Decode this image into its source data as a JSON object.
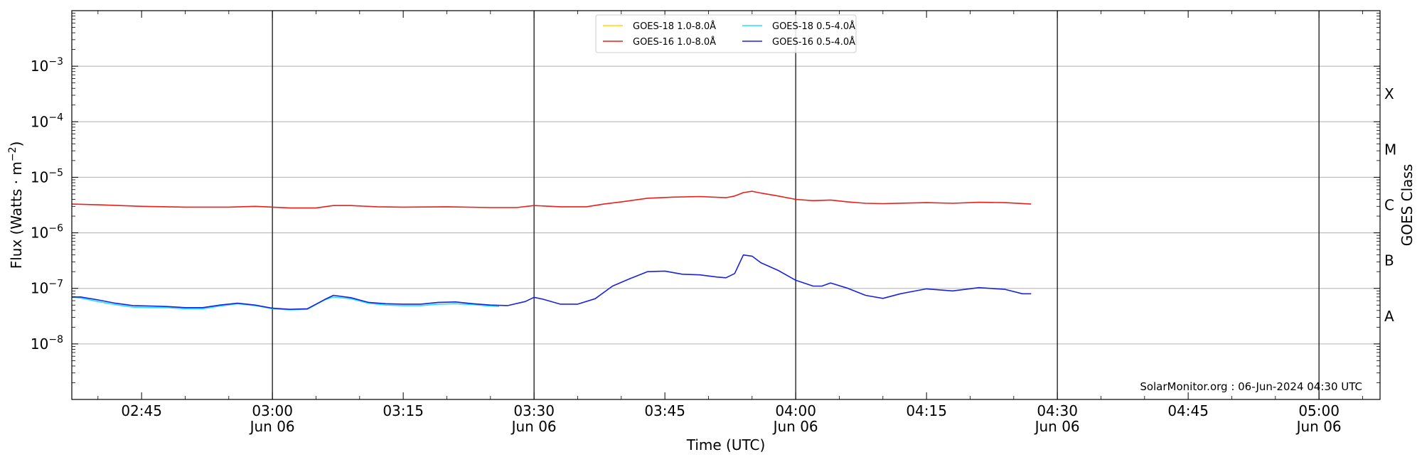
{
  "chart_data": {
    "type": "line",
    "title": "",
    "xlabel": "Time (UTC)",
    "ylabel": "Flux (Watts · m⁻²)",
    "ylabel_parts": {
      "main": "Flux (Watts · m",
      "exp": "−2",
      "close": ")"
    },
    "right_ylabel": "GOES Class",
    "y_scale": "log",
    "ylim": [
      1e-09,
      0.01
    ],
    "xlim": [
      "2024-06-06 02:37",
      "2024-06-06 05:07"
    ],
    "grid": "horizontal at decades",
    "legend_position": "top-center",
    "y_ticks": [
      {
        "value": 1e-08,
        "base": "10",
        "exp": "−8"
      },
      {
        "value": 1e-07,
        "base": "10",
        "exp": "−7"
      },
      {
        "value": 1e-06,
        "base": "10",
        "exp": "−6"
      },
      {
        "value": 1e-05,
        "base": "10",
        "exp": "−5"
      },
      {
        "value": 0.0001,
        "base": "10",
        "exp": "−4"
      },
      {
        "value": 0.001,
        "base": "10",
        "exp": "−3"
      }
    ],
    "class_labels": [
      {
        "label": "A",
        "value": 3.16e-08
      },
      {
        "label": "B",
        "value": 3.16e-07
      },
      {
        "label": "C",
        "value": 3.16e-06
      },
      {
        "label": "M",
        "value": 3.16e-05
      },
      {
        "label": "X",
        "value": 0.000316
      }
    ],
    "x_ticks": [
      {
        "time": "02:45",
        "line1": "02:45",
        "line2": ""
      },
      {
        "time": "03:00",
        "line1": "03:00",
        "line2": "Jun 06"
      },
      {
        "time": "03:15",
        "line1": "03:15",
        "line2": ""
      },
      {
        "time": "03:30",
        "line1": "03:30",
        "line2": "Jun 06"
      },
      {
        "time": "03:45",
        "line1": "03:45",
        "line2": ""
      },
      {
        "time": "04:00",
        "line1": "04:00",
        "line2": "Jun 06"
      },
      {
        "time": "04:15",
        "line1": "04:15",
        "line2": ""
      },
      {
        "time": "04:30",
        "line1": "04:30",
        "line2": "Jun 06"
      },
      {
        "time": "04:45",
        "line1": "04:45",
        "line2": ""
      },
      {
        "time": "05:00",
        "line1": "05:00",
        "line2": "Jun 06"
      }
    ],
    "vertical_lines": [
      "03:00",
      "03:30",
      "04:00",
      "04:30",
      "05:00"
    ],
    "series": [
      {
        "name": "GOES-18 1.0-8.0Å",
        "color": "#ffd700",
        "x": [],
        "y": []
      },
      {
        "name": "GOES-16 1.0-8.0Å",
        "color": "#e8201a",
        "x": [
          "02:37",
          "02:40",
          "02:45",
          "02:50",
          "02:55",
          "02:58",
          "03:00",
          "03:02",
          "03:05",
          "03:07",
          "03:09",
          "03:12",
          "03:15",
          "03:20",
          "03:25",
          "03:28",
          "03:30",
          "03:33",
          "03:36",
          "03:38",
          "03:40",
          "03:43",
          "03:46",
          "03:49",
          "03:52",
          "03:53",
          "03:54",
          "03:55",
          "03:56",
          "03:58",
          "04:00",
          "04:02",
          "04:04",
          "04:06",
          "04:08",
          "04:10",
          "04:15",
          "04:18",
          "04:21",
          "04:24",
          "04:27"
        ],
        "y": [
          3.3e-06,
          3.2e-06,
          3e-06,
          2.9e-06,
          2.9e-06,
          3e-06,
          2.9e-06,
          2.8e-06,
          2.8e-06,
          3.1e-06,
          3.1e-06,
          2.95e-06,
          2.9e-06,
          2.95e-06,
          2.85e-06,
          2.85e-06,
          3.1e-06,
          2.95e-06,
          2.95e-06,
          3.3e-06,
          3.6e-06,
          4.2e-06,
          4.4e-06,
          4.5e-06,
          4.3e-06,
          4.6e-06,
          5.3e-06,
          5.6e-06,
          5.2e-06,
          4.6e-06,
          4e-06,
          3.8e-06,
          3.9e-06,
          3.6e-06,
          3.4e-06,
          3.35e-06,
          3.5e-06,
          3.4e-06,
          3.55e-06,
          3.5e-06,
          3.3e-06
        ]
      },
      {
        "name": "GOES-18 0.5-4.0Å",
        "color": "#22e0ff",
        "x": [
          "02:37",
          "02:38",
          "02:40",
          "02:42",
          "02:44",
          "02:46",
          "02:48",
          "02:50",
          "02:52",
          "02:54",
          "02:56",
          "02:58",
          "03:00",
          "03:02",
          "03:04",
          "03:06",
          "03:07",
          "03:09",
          "03:11",
          "03:13",
          "03:15",
          "03:17",
          "03:19",
          "03:21",
          "03:23",
          "03:25",
          "03:26"
        ],
        "y": [
          7e-08,
          6.7e-08,
          5.8e-08,
          5.1e-08,
          4.6e-08,
          4.5e-08,
          4.5e-08,
          4.3e-08,
          4.3e-08,
          4.8e-08,
          5.3e-08,
          4.9e-08,
          4.3e-08,
          4.1e-08,
          4.2e-08,
          6.2e-08,
          7e-08,
          6.5e-08,
          5.4e-08,
          5e-08,
          4.9e-08,
          4.9e-08,
          5.2e-08,
          5.3e-08,
          5.1e-08,
          4.8e-08,
          4.7e-08
        ]
      },
      {
        "name": "GOES-16 0.5-4.0Å",
        "color": "#1a22e0",
        "x": [
          "02:37",
          "02:38",
          "02:40",
          "02:42",
          "02:44",
          "02:46",
          "02:48",
          "02:50",
          "02:52",
          "02:54",
          "02:56",
          "02:58",
          "03:00",
          "03:02",
          "03:04",
          "03:06",
          "03:07",
          "03:09",
          "03:11",
          "03:13",
          "03:15",
          "03:17",
          "03:19",
          "03:21",
          "03:23",
          "03:25",
          "03:27",
          "03:29",
          "03:30",
          "03:31",
          "03:33",
          "03:35",
          "03:37",
          "03:39",
          "03:41",
          "03:43",
          "03:45",
          "03:47",
          "03:49",
          "03:51",
          "03:52",
          "03:53",
          "03:54",
          "03:55",
          "03:56",
          "03:58",
          "04:00",
          "04:02",
          "04:03",
          "04:04",
          "04:06",
          "04:08",
          "04:10",
          "04:12",
          "04:15",
          "04:18",
          "04:21",
          "04:24",
          "04:26",
          "04:27"
        ],
        "y": [
          7e-08,
          7e-08,
          6.2e-08,
          5.4e-08,
          4.9e-08,
          4.8e-08,
          4.7e-08,
          4.5e-08,
          4.5e-08,
          5e-08,
          5.4e-08,
          5e-08,
          4.4e-08,
          4.2e-08,
          4.3e-08,
          6.3e-08,
          7.5e-08,
          6.8e-08,
          5.6e-08,
          5.3e-08,
          5.2e-08,
          5.2e-08,
          5.6e-08,
          5.7e-08,
          5.3e-08,
          5e-08,
          4.9e-08,
          5.8e-08,
          6.9e-08,
          6.4e-08,
          5.2e-08,
          5.2e-08,
          6.5e-08,
          1.1e-07,
          1.5e-07,
          2e-07,
          2.05e-07,
          1.8e-07,
          1.75e-07,
          1.6e-07,
          1.55e-07,
          1.85e-07,
          4e-07,
          3.8e-07,
          2.9e-07,
          2.1e-07,
          1.4e-07,
          1.1e-07,
          1.1e-07,
          1.25e-07,
          1e-07,
          7.5e-08,
          6.6e-08,
          8e-08,
          9.8e-08,
          9e-08,
          1.03e-07,
          9.6e-08,
          8e-08,
          8e-08
        ]
      }
    ],
    "credit": "SolarMonitor.org : 06-Jun-2024 04:30 UTC"
  }
}
